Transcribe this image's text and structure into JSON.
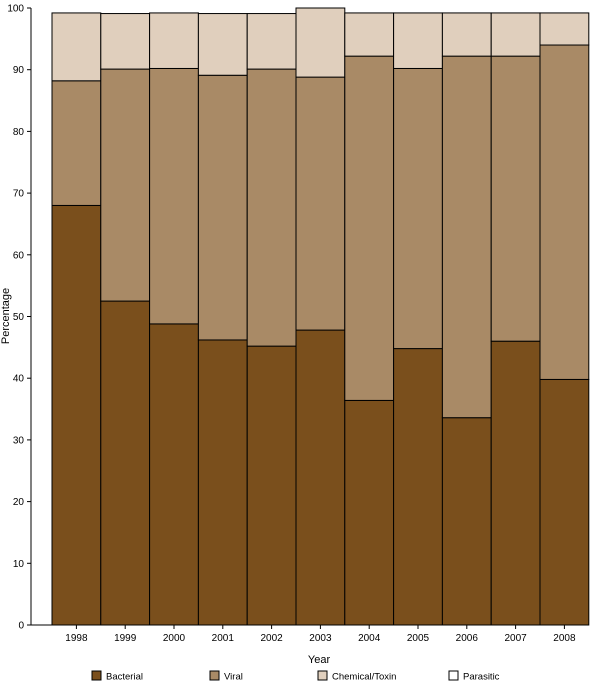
{
  "chart_data": {
    "type": "bar",
    "stacked": true,
    "categories": [
      "1998",
      "1999",
      "2000",
      "2001",
      "2002",
      "2003",
      "2004",
      "2005",
      "2006",
      "2007",
      "2008"
    ],
    "series": [
      {
        "name": "Bacterial",
        "color": "#7a4f1c",
        "values": [
          68,
          52.5,
          48.8,
          46.2,
          45.2,
          47.8,
          36.4,
          44.8,
          33.6,
          46,
          39.8
        ]
      },
      {
        "name": "Viral",
        "color": "#a98a66",
        "values": [
          20.2,
          37.6,
          41.4,
          42.9,
          44.9,
          41,
          55.8,
          45.4,
          58.6,
          46.2,
          54.2
        ]
      },
      {
        "name": "Chemical/Toxin",
        "color": "#e0cfbd",
        "values": [
          11,
          9,
          9,
          10,
          9,
          11.2,
          7,
          9,
          7,
          7,
          5.2
        ]
      },
      {
        "name": "Parasitic",
        "color": "#ffffff",
        "values": [
          0,
          0,
          0,
          0,
          0,
          0,
          0,
          0,
          0,
          0,
          0
        ]
      }
    ],
    "xlabel": "Year",
    "ylabel": "Percentage",
    "ylim": [
      0,
      100
    ],
    "yticks": [
      0,
      10,
      20,
      30,
      40,
      50,
      60,
      70,
      80,
      90,
      100
    ],
    "grid": false,
    "legend_position": "bottom"
  }
}
